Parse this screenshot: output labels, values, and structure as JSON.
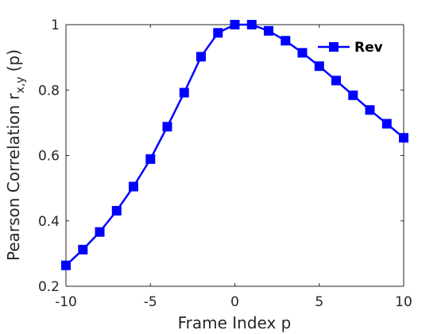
{
  "chart_data": {
    "type": "line",
    "title": "",
    "xlabel": "Frame Index p",
    "ylabel_main": "Pearson Correlation r",
    "ylabel_sub": "x,y",
    "ylabel_tail": "(p)",
    "xlim": [
      -10,
      10
    ],
    "ylim": [
      0.2,
      1
    ],
    "xticks": [
      -10,
      -5,
      0,
      5,
      10
    ],
    "yticks": [
      0.2,
      0.4,
      0.6,
      0.8,
      1
    ],
    "xtick_labels": [
      "-10",
      "-5",
      "0",
      "5",
      "10"
    ],
    "ytick_labels": [
      "0.2",
      "0.4",
      "0.6",
      "0.8",
      "1"
    ],
    "grid": false,
    "legend_position": "top-right",
    "series": [
      {
        "name": "Rev",
        "color": "#0000ff",
        "marker": "square",
        "x": [
          -10,
          -9,
          -8,
          -7,
          -6,
          -5,
          -4,
          -3,
          -2,
          -1,
          0,
          1,
          2,
          3,
          4,
          5,
          6,
          7,
          8,
          9,
          10
        ],
        "y": [
          0.264,
          0.312,
          0.366,
          0.431,
          0.505,
          0.589,
          0.688,
          0.792,
          0.902,
          0.975,
          1.0,
          1.0,
          0.981,
          0.951,
          0.914,
          0.873,
          0.829,
          0.784,
          0.739,
          0.697,
          0.654
        ]
      }
    ]
  }
}
